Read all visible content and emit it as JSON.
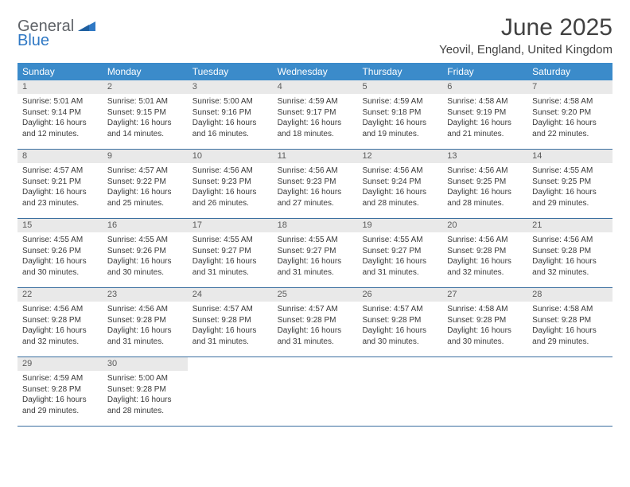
{
  "brand": {
    "general": "General",
    "blue": "Blue"
  },
  "title": "June 2025",
  "location": "Yeovil, England, United Kingdom",
  "colors": {
    "header_bg": "#3b8bca",
    "header_text": "#ffffff",
    "daynum_bg": "#e9e9e9",
    "week_border": "#3b6fa0",
    "logo_gray": "#5f6368",
    "logo_blue": "#2f78c4",
    "text": "#3a3a3a"
  },
  "dayNames": [
    "Sunday",
    "Monday",
    "Tuesday",
    "Wednesday",
    "Thursday",
    "Friday",
    "Saturday"
  ],
  "weeks": [
    [
      {
        "n": "1",
        "sr": "Sunrise: 5:01 AM",
        "ss": "Sunset: 9:14 PM",
        "d1": "Daylight: 16 hours",
        "d2": "and 12 minutes."
      },
      {
        "n": "2",
        "sr": "Sunrise: 5:01 AM",
        "ss": "Sunset: 9:15 PM",
        "d1": "Daylight: 16 hours",
        "d2": "and 14 minutes."
      },
      {
        "n": "3",
        "sr": "Sunrise: 5:00 AM",
        "ss": "Sunset: 9:16 PM",
        "d1": "Daylight: 16 hours",
        "d2": "and 16 minutes."
      },
      {
        "n": "4",
        "sr": "Sunrise: 4:59 AM",
        "ss": "Sunset: 9:17 PM",
        "d1": "Daylight: 16 hours",
        "d2": "and 18 minutes."
      },
      {
        "n": "5",
        "sr": "Sunrise: 4:59 AM",
        "ss": "Sunset: 9:18 PM",
        "d1": "Daylight: 16 hours",
        "d2": "and 19 minutes."
      },
      {
        "n": "6",
        "sr": "Sunrise: 4:58 AM",
        "ss": "Sunset: 9:19 PM",
        "d1": "Daylight: 16 hours",
        "d2": "and 21 minutes."
      },
      {
        "n": "7",
        "sr": "Sunrise: 4:58 AM",
        "ss": "Sunset: 9:20 PM",
        "d1": "Daylight: 16 hours",
        "d2": "and 22 minutes."
      }
    ],
    [
      {
        "n": "8",
        "sr": "Sunrise: 4:57 AM",
        "ss": "Sunset: 9:21 PM",
        "d1": "Daylight: 16 hours",
        "d2": "and 23 minutes."
      },
      {
        "n": "9",
        "sr": "Sunrise: 4:57 AM",
        "ss": "Sunset: 9:22 PM",
        "d1": "Daylight: 16 hours",
        "d2": "and 25 minutes."
      },
      {
        "n": "10",
        "sr": "Sunrise: 4:56 AM",
        "ss": "Sunset: 9:23 PM",
        "d1": "Daylight: 16 hours",
        "d2": "and 26 minutes."
      },
      {
        "n": "11",
        "sr": "Sunrise: 4:56 AM",
        "ss": "Sunset: 9:23 PM",
        "d1": "Daylight: 16 hours",
        "d2": "and 27 minutes."
      },
      {
        "n": "12",
        "sr": "Sunrise: 4:56 AM",
        "ss": "Sunset: 9:24 PM",
        "d1": "Daylight: 16 hours",
        "d2": "and 28 minutes."
      },
      {
        "n": "13",
        "sr": "Sunrise: 4:56 AM",
        "ss": "Sunset: 9:25 PM",
        "d1": "Daylight: 16 hours",
        "d2": "and 28 minutes."
      },
      {
        "n": "14",
        "sr": "Sunrise: 4:55 AM",
        "ss": "Sunset: 9:25 PM",
        "d1": "Daylight: 16 hours",
        "d2": "and 29 minutes."
      }
    ],
    [
      {
        "n": "15",
        "sr": "Sunrise: 4:55 AM",
        "ss": "Sunset: 9:26 PM",
        "d1": "Daylight: 16 hours",
        "d2": "and 30 minutes."
      },
      {
        "n": "16",
        "sr": "Sunrise: 4:55 AM",
        "ss": "Sunset: 9:26 PM",
        "d1": "Daylight: 16 hours",
        "d2": "and 30 minutes."
      },
      {
        "n": "17",
        "sr": "Sunrise: 4:55 AM",
        "ss": "Sunset: 9:27 PM",
        "d1": "Daylight: 16 hours",
        "d2": "and 31 minutes."
      },
      {
        "n": "18",
        "sr": "Sunrise: 4:55 AM",
        "ss": "Sunset: 9:27 PM",
        "d1": "Daylight: 16 hours",
        "d2": "and 31 minutes."
      },
      {
        "n": "19",
        "sr": "Sunrise: 4:55 AM",
        "ss": "Sunset: 9:27 PM",
        "d1": "Daylight: 16 hours",
        "d2": "and 31 minutes."
      },
      {
        "n": "20",
        "sr": "Sunrise: 4:56 AM",
        "ss": "Sunset: 9:28 PM",
        "d1": "Daylight: 16 hours",
        "d2": "and 32 minutes."
      },
      {
        "n": "21",
        "sr": "Sunrise: 4:56 AM",
        "ss": "Sunset: 9:28 PM",
        "d1": "Daylight: 16 hours",
        "d2": "and 32 minutes."
      }
    ],
    [
      {
        "n": "22",
        "sr": "Sunrise: 4:56 AM",
        "ss": "Sunset: 9:28 PM",
        "d1": "Daylight: 16 hours",
        "d2": "and 32 minutes."
      },
      {
        "n": "23",
        "sr": "Sunrise: 4:56 AM",
        "ss": "Sunset: 9:28 PM",
        "d1": "Daylight: 16 hours",
        "d2": "and 31 minutes."
      },
      {
        "n": "24",
        "sr": "Sunrise: 4:57 AM",
        "ss": "Sunset: 9:28 PM",
        "d1": "Daylight: 16 hours",
        "d2": "and 31 minutes."
      },
      {
        "n": "25",
        "sr": "Sunrise: 4:57 AM",
        "ss": "Sunset: 9:28 PM",
        "d1": "Daylight: 16 hours",
        "d2": "and 31 minutes."
      },
      {
        "n": "26",
        "sr": "Sunrise: 4:57 AM",
        "ss": "Sunset: 9:28 PM",
        "d1": "Daylight: 16 hours",
        "d2": "and 30 minutes."
      },
      {
        "n": "27",
        "sr": "Sunrise: 4:58 AM",
        "ss": "Sunset: 9:28 PM",
        "d1": "Daylight: 16 hours",
        "d2": "and 30 minutes."
      },
      {
        "n": "28",
        "sr": "Sunrise: 4:58 AM",
        "ss": "Sunset: 9:28 PM",
        "d1": "Daylight: 16 hours",
        "d2": "and 29 minutes."
      }
    ],
    [
      {
        "n": "29",
        "sr": "Sunrise: 4:59 AM",
        "ss": "Sunset: 9:28 PM",
        "d1": "Daylight: 16 hours",
        "d2": "and 29 minutes."
      },
      {
        "n": "30",
        "sr": "Sunrise: 5:00 AM",
        "ss": "Sunset: 9:28 PM",
        "d1": "Daylight: 16 hours",
        "d2": "and 28 minutes."
      },
      null,
      null,
      null,
      null,
      null
    ]
  ]
}
